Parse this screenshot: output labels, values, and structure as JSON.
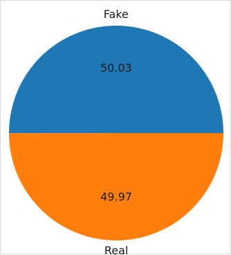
{
  "chart_data": {
    "type": "pie",
    "labels": [
      "Fake",
      "Real"
    ],
    "values": [
      50.03,
      49.97
    ],
    "value_labels": [
      "50.03",
      "49.97"
    ],
    "colors": [
      "#1f77b4",
      "#ff7f0e"
    ],
    "title": "",
    "legend": "none",
    "start_angle_deg": 0,
    "direction": "counterclockwise"
  }
}
